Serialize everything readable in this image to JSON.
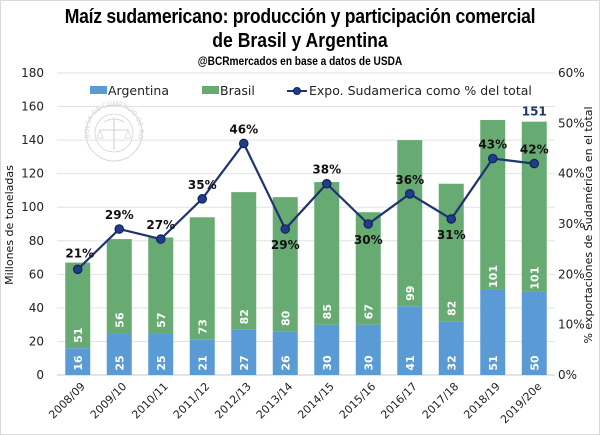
{
  "chart_data": {
    "type": "bar",
    "title": "Maíz sudamericano: producción y participación comercial",
    "title_line2": "de Brasil y Argentina",
    "subtitle": "@BCRmercados en base a datos de USDA",
    "ylabel": "Millones de toneladas",
    "y2label": "% exportaciones de Sudamérica en el total",
    "ylim": [
      0,
      180
    ],
    "y2lim": [
      0,
      60
    ],
    "yticks": [
      "0",
      "20",
      "40",
      "60",
      "80",
      "100",
      "120",
      "140",
      "160",
      "180"
    ],
    "y2ticks": [
      "0%",
      "10%",
      "20%",
      "30%",
      "40%",
      "50%",
      "60%"
    ],
    "grid": true,
    "legend_position": "top",
    "categories": [
      "2008/09",
      "2009/10",
      "2010/11",
      "2011/12",
      "2012/13",
      "2013/14",
      "2014/15",
      "2015/16",
      "2016/17",
      "2017/18",
      "2018/19",
      "2019/20e"
    ],
    "series": [
      {
        "name": "Argentina",
        "type": "bar",
        "stacked": true,
        "color": "#5b9bd5",
        "values": [
          16,
          25,
          25,
          21,
          27,
          26,
          30,
          30,
          41,
          32,
          51,
          50
        ],
        "labels": [
          "16",
          "25",
          "25",
          "21",
          "27",
          "26",
          "30",
          "30",
          "41",
          "32",
          "51",
          "50"
        ]
      },
      {
        "name": "Brasil",
        "type": "bar",
        "stacked": true,
        "color": "#67ab73",
        "values": [
          51,
          56,
          57,
          73,
          82,
          80,
          85,
          67,
          99,
          82,
          101,
          101
        ],
        "labels": [
          "51",
          "56",
          "57",
          "73",
          "82",
          "80",
          "85",
          "67",
          "99",
          "82",
          "101",
          "101"
        ]
      },
      {
        "name": "Expo. Sudamerica como % del total",
        "type": "line",
        "axis": "right",
        "color": "#1f3272",
        "values": [
          21,
          29,
          27,
          35,
          46,
          29,
          38,
          30,
          36,
          31,
          43,
          42
        ],
        "labels": [
          "21%",
          "29%",
          "27%",
          "35%",
          "46%",
          "29%",
          "38%",
          "30%",
          "36%",
          "31%",
          "43%",
          "42%"
        ]
      }
    ],
    "annotations": [
      {
        "category": "2019/20e",
        "text": "151"
      }
    ],
    "watermark": "BOLSA DE COMERCIO DE ROSARIO"
  }
}
